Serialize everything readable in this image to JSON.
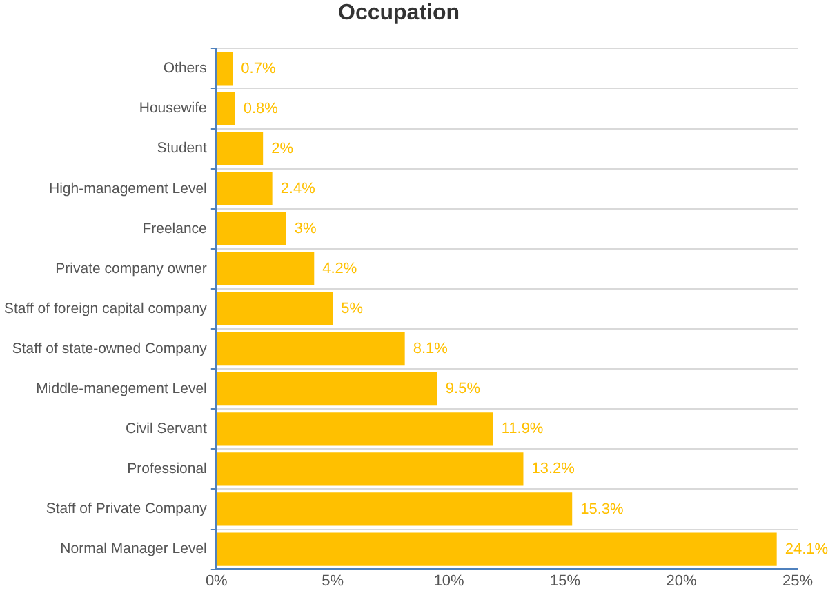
{
  "chart_data": {
    "type": "bar",
    "title": "Occupation",
    "orientation": "horizontal",
    "categories": [
      "Others",
      "Housewife",
      "Student",
      "High-management Level",
      "Freelance",
      "Private company owner",
      "Staff of foreign capital company",
      "Staff of state-owned Company",
      "Middle-manegement Level",
      "Civil Servant",
      "Professional",
      "Staff of Private Company",
      "Normal Manager Level"
    ],
    "values": [
      0.7,
      0.8,
      2,
      2.4,
      3,
      4.2,
      5,
      8.1,
      9.5,
      11.9,
      13.2,
      15.3,
      24.1
    ],
    "value_labels": [
      "0.7%",
      "0.8%",
      "2%",
      "2.4%",
      "3%",
      "4.2%",
      "5%",
      "8.1%",
      "9.5%",
      "11.9%",
      "13.2%",
      "15.3%",
      "24.1%"
    ],
    "color": "#ffc000",
    "xlim": [
      0,
      25
    ],
    "xticks": [
      {
        "value": 0,
        "label": "0%"
      },
      {
        "value": 5,
        "label": "5%"
      },
      {
        "value": 10,
        "label": "10%"
      },
      {
        "value": 15,
        "label": "15%"
      },
      {
        "value": 20,
        "label": "20%"
      },
      {
        "value": 25,
        "label": "25%"
      }
    ],
    "grid": "y"
  }
}
